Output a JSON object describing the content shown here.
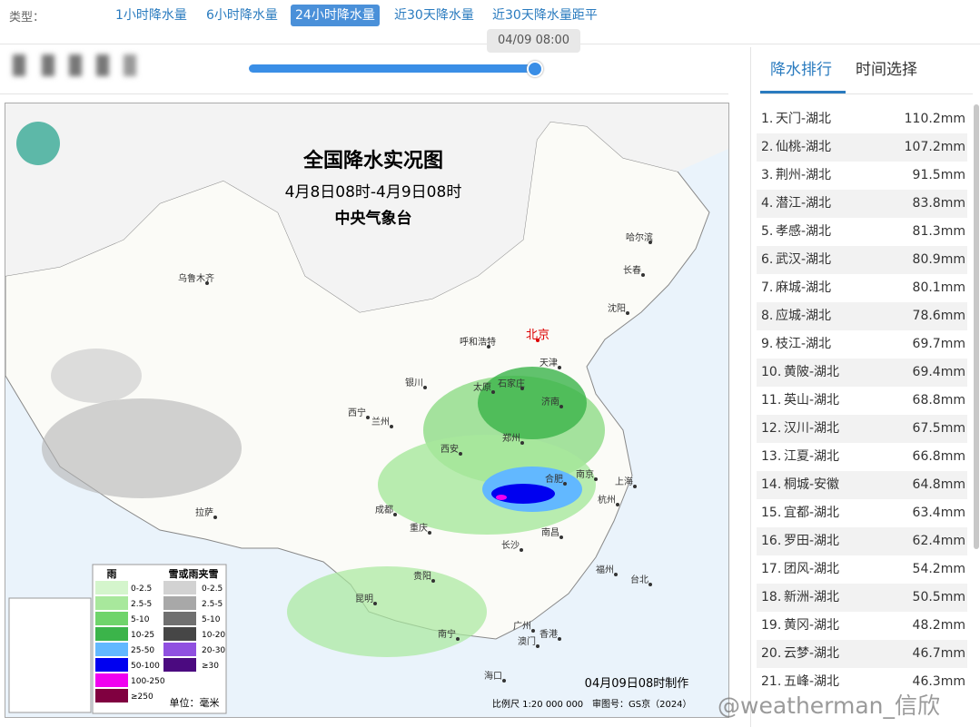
{
  "filter": {
    "label": "类型：",
    "tabs": [
      "1小时降水量",
      "6小时降水量",
      "24小时降水量",
      "近30天降水量",
      "近30天降水量距平"
    ],
    "active": 2
  },
  "slider": {
    "time": "04/09 08:00"
  },
  "side_tabs": [
    "降水排行",
    "时间选择"
  ],
  "ranking": [
    {
      "rank": "1.",
      "name": "天门-湖北",
      "value": "110.2mm"
    },
    {
      "rank": "2.",
      "name": "仙桃-湖北",
      "value": "107.2mm"
    },
    {
      "rank": "3.",
      "name": "荆州-湖北",
      "value": "91.5mm"
    },
    {
      "rank": "4.",
      "name": "潜江-湖北",
      "value": "83.8mm"
    },
    {
      "rank": "5.",
      "name": "孝感-湖北",
      "value": "81.3mm"
    },
    {
      "rank": "6.",
      "name": "武汉-湖北",
      "value": "80.9mm"
    },
    {
      "rank": "7.",
      "name": "麻城-湖北",
      "value": "80.1mm"
    },
    {
      "rank": "8.",
      "name": "应城-湖北",
      "value": "78.6mm"
    },
    {
      "rank": "9.",
      "name": "枝江-湖北",
      "value": "69.7mm"
    },
    {
      "rank": "10.",
      "name": "黄陂-湖北",
      "value": "69.4mm"
    },
    {
      "rank": "11.",
      "name": "英山-湖北",
      "value": "68.8mm"
    },
    {
      "rank": "12.",
      "name": "汉川-湖北",
      "value": "67.5mm"
    },
    {
      "rank": "13.",
      "name": "江夏-湖北",
      "value": "66.8mm"
    },
    {
      "rank": "14.",
      "name": "桐城-安徽",
      "value": "64.8mm"
    },
    {
      "rank": "15.",
      "name": "宜都-湖北",
      "value": "63.4mm"
    },
    {
      "rank": "16.",
      "name": "罗田-湖北",
      "value": "62.4mm"
    },
    {
      "rank": "17.",
      "name": "团风-湖北",
      "value": "54.2mm"
    },
    {
      "rank": "18.",
      "name": "新洲-湖北",
      "value": "50.5mm"
    },
    {
      "rank": "19.",
      "name": "黄冈-湖北",
      "value": "48.2mm"
    },
    {
      "rank": "20.",
      "name": "云梦-湖北",
      "value": "46.7mm"
    },
    {
      "rank": "21.",
      "name": "五峰-湖北",
      "value": "46.3mm"
    }
  ],
  "map": {
    "title": "全国降水实况图",
    "subtitle": "4月8日08时-4月9日08时",
    "agency": "中央气象台",
    "cities": [
      "乌鲁木齐",
      "哈尔滨",
      "长春",
      "沈阳",
      "呼和浩特",
      "北京",
      "天津",
      "石家庄",
      "太原",
      "银川",
      "济南",
      "西宁",
      "兰州",
      "郑州",
      "西安",
      "南京",
      "合肥",
      "上海",
      "杭州",
      "成都",
      "重庆",
      "南昌",
      "长沙",
      "拉萨",
      "福州",
      "贵阳",
      "台北",
      "昆明",
      "南宁",
      "广州",
      "香港",
      "澳门",
      "海口"
    ],
    "legend": {
      "rain_title": "雨",
      "snow_title": "雪或雨夹雪",
      "unit": "单位：毫米",
      "rain": [
        {
          "label": "0-2.5",
          "color": "#d4f5cc"
        },
        {
          "label": "2.5-5",
          "color": "#a8e89c"
        },
        {
          "label": "5-10",
          "color": "#6fd46b"
        },
        {
          "label": "10-25",
          "color": "#3bb44a"
        },
        {
          "label": "25-50",
          "color": "#62b8ff"
        },
        {
          "label": "50-100",
          "color": "#0000f0"
        },
        {
          "label": "100-250",
          "color": "#f000f0"
        },
        {
          "label": "≥250",
          "color": "#800040"
        }
      ],
      "snow": [
        {
          "label": "0-2.5",
          "color": "#d2d2d2"
        },
        {
          "label": "2.5-5",
          "color": "#a8a8a8"
        },
        {
          "label": "5-10",
          "color": "#707070"
        },
        {
          "label": "10-20",
          "color": "#464646"
        },
        {
          "label": "20-30",
          "color": "#9050e0"
        },
        {
          "label": "≥30",
          "color": "#4b0a80"
        }
      ]
    },
    "footer": "04月09日08时制作",
    "scale": "比例尺 1:20 000 000",
    "approval": "审图号：GS京（2024）"
  },
  "watermark": "@weatherman_信欣"
}
